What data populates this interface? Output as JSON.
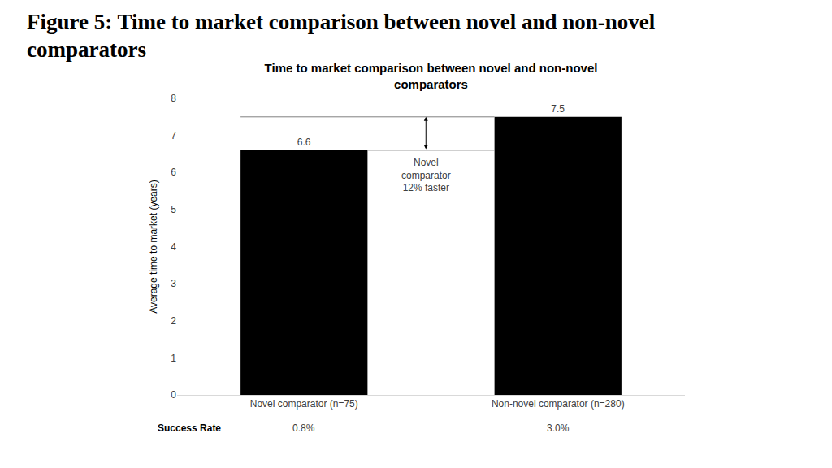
{
  "heading": "Figure 5: Time to market comparison between novel and non-novel comparators",
  "chart_data": {
    "type": "bar",
    "title": "Time to market comparison between novel and non-novel comparators",
    "categories": [
      "Novel comparator (n=75)",
      "Non-novel comparator (n=280)"
    ],
    "values": [
      6.6,
      7.5
    ],
    "color": "#000000",
    "ylabel": "Average time to market (years)",
    "ylim": [
      0,
      8
    ],
    "yticks": [
      0,
      1,
      2,
      3,
      4,
      5,
      6,
      7,
      8
    ],
    "grid": false,
    "data_labels": true,
    "annotation": [
      "Novel",
      "comparator",
      "12% faster"
    ],
    "success_rate": {
      "label": "Success Rate",
      "values": [
        0.8,
        3.0
      ],
      "value_labels": [
        "0.8%",
        "3.0%"
      ]
    }
  }
}
